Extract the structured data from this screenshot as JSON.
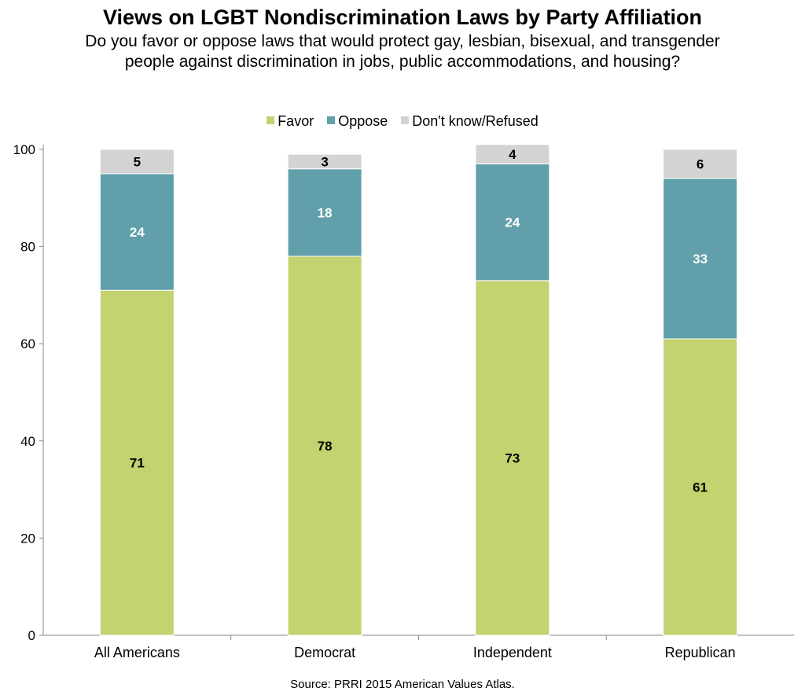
{
  "chart_data": {
    "type": "bar",
    "stacked": true,
    "title": "Views on LGBT Nondiscrimination Laws by Party Affiliation",
    "subtitle": "Do you favor or oppose laws that would protect gay, lesbian, bisexual, and transgender people against discrimination in jobs, public accommodations, and housing?",
    "categories": [
      "All Americans",
      "Democrat",
      "Independent",
      "Republican"
    ],
    "series": [
      {
        "name": "Favor",
        "values": [
          71,
          78,
          73,
          61
        ],
        "color": "#c2d36f",
        "label_color": "#000000"
      },
      {
        "name": "Oppose",
        "values": [
          24,
          18,
          24,
          33
        ],
        "color": "#619faa",
        "label_color": "#ffffff"
      },
      {
        "name": "Don't know/Refused",
        "values": [
          5,
          3,
          4,
          6
        ],
        "color": "#d3d3d3",
        "label_color": "#000000"
      }
    ],
    "yticks": [
      0,
      20,
      40,
      60,
      80,
      100
    ],
    "ylim": [
      0,
      100
    ],
    "legend_position": "top-center",
    "grid": false,
    "source": "Source: PRRI 2015 American Values Atlas."
  }
}
